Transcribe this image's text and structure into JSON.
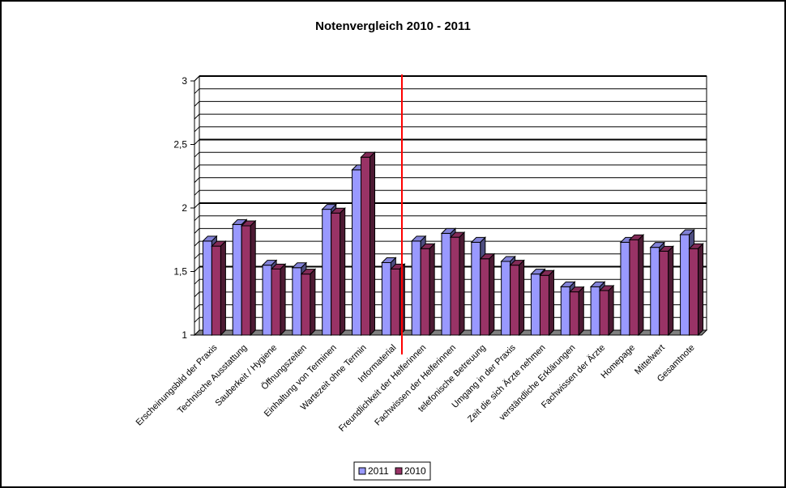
{
  "chart_data": {
    "type": "bar",
    "title": "Notenvergleich 2010 - 2011",
    "xlabel": "",
    "ylabel": "",
    "ylim": [
      1,
      3
    ],
    "yticks": [
      "1",
      "1,5",
      "2",
      "2,5",
      "3"
    ],
    "categories": [
      "Erscheinungsbild der Praxis",
      "Technische Ausstattung",
      "Sauberkeit / Hygiene",
      "Öffnungszeiten",
      "Einhaltung von Terminen",
      "Wartezeit ohne Termin",
      "Informaterial",
      "Freundlichkeit der Helferinnen",
      "Fachwissen der Helferinnen",
      "telefonische Betreuung",
      "Umgang in der Praxis",
      "Zeit die sich Ärzte nehmen",
      "verständliche Erklärungen",
      "Fachwissen der Ärzte",
      "Homepage",
      "Mittelwert",
      "Gesamtnote"
    ],
    "series": [
      {
        "name": "2011",
        "color": "#9999ff",
        "values": [
          1.74,
          1.87,
          1.55,
          1.53,
          1.99,
          2.3,
          1.57,
          1.74,
          1.8,
          1.73,
          1.58,
          1.48,
          1.38,
          1.38,
          1.73,
          1.69,
          1.79
        ]
      },
      {
        "name": "2010",
        "color": "#993366",
        "values": [
          1.7,
          1.86,
          1.52,
          1.48,
          1.96,
          2.4,
          1.52,
          1.68,
          1.77,
          1.6,
          1.55,
          1.47,
          1.34,
          1.35,
          1.75,
          1.66,
          1.68
        ]
      }
    ],
    "legend_position": "bottom",
    "grid": true
  }
}
